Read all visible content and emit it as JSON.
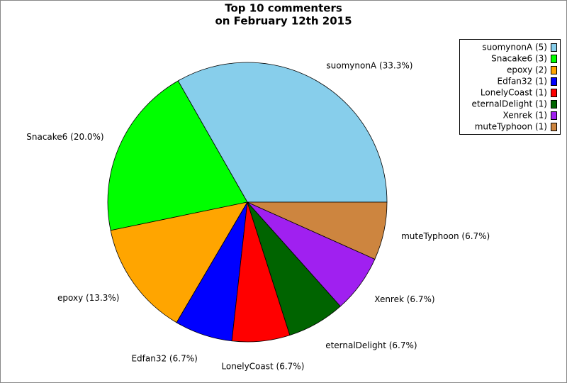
{
  "chart_data": {
    "type": "pie",
    "title": "Top 10 commenters",
    "subtitle": "on February 12th 2015",
    "categories": [
      "suomynonA (5)",
      "Snacake6 (3)",
      "epoxy (2)",
      "Edfan32 (1)",
      "LonelyCoast (1)",
      "eternalDelight (1)",
      "Xenrek (1)",
      "muteTyphoon (1)"
    ],
    "values": [
      33.3,
      20.0,
      13.3,
      6.7,
      6.7,
      6.7,
      6.7,
      6.7
    ],
    "value_labels": [
      "suomynonA (33.3%)",
      "Snacake6 (20.0%)",
      "epoxy (13.3%)",
      "Edfan32 (6.7%)",
      "LonelyCoast (6.7%)",
      "eternalDelight (6.7%)",
      "Xenrek (6.7%)",
      "muteTyphoon (6.7%)"
    ],
    "colors": [
      "#87ceeb",
      "#00ff00",
      "#ffa500",
      "#0000ff",
      "#ff0000",
      "#006400",
      "#a020f0",
      "#cd853f"
    ],
    "legend": "upper right"
  }
}
